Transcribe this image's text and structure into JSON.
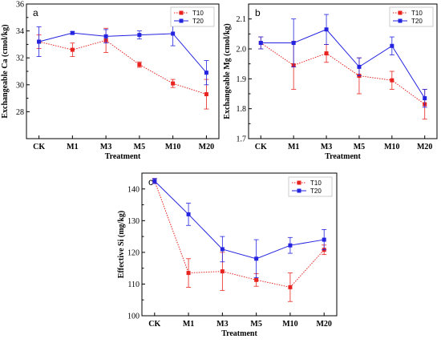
{
  "colors": {
    "T10": "#e8231f",
    "T20": "#2323e0",
    "axis": "#000000"
  },
  "chart_data": [
    {
      "type": "line",
      "panel_label": "a",
      "categories": [
        "CK",
        "M1",
        "M3",
        "M5",
        "M10",
        "M20"
      ],
      "series": [
        {
          "name": "T10",
          "values": [
            33.2,
            32.6,
            33.3,
            31.5,
            30.1,
            29.3
          ],
          "errors": [
            0.5,
            0.5,
            0.9,
            0.2,
            0.3,
            1.1
          ]
        },
        {
          "name": "T20",
          "values": [
            33.2,
            33.85,
            33.6,
            33.7,
            33.8,
            30.9
          ],
          "errors": [
            1.1,
            0.1,
            0.5,
            0.3,
            0.9,
            0.9
          ]
        }
      ],
      "xlabel": "Treatment",
      "ylabel": "Exchangeable Ca (cmol/kg)",
      "ylim": [
        26,
        36
      ],
      "yticks": [
        28,
        30,
        32,
        34,
        36
      ],
      "legend": "top-right"
    },
    {
      "type": "line",
      "panel_label": "b",
      "categories": [
        "CK",
        "M1",
        "M3",
        "M5",
        "M10",
        "M20"
      ],
      "series": [
        {
          "name": "T10",
          "values": [
            2.02,
            1.945,
            1.985,
            1.91,
            1.895,
            1.815
          ],
          "errors": [
            0.02,
            0.08,
            0.03,
            0.06,
            0.03,
            0.05
          ]
        },
        {
          "name": "T20",
          "values": [
            2.02,
            2.02,
            2.065,
            1.94,
            2.01,
            1.835
          ],
          "errors": [
            0.02,
            0.08,
            0.05,
            0.03,
            0.03,
            0.03
          ]
        }
      ],
      "xlabel": "Treatment",
      "ylabel": "Exchangeable Mg (cmol/kg)",
      "ylim": [
        1.7,
        2.15
      ],
      "yticks": [
        1.7,
        1.8,
        1.9,
        2.0,
        2.1
      ],
      "legend": "top-right"
    },
    {
      "type": "line",
      "panel_label": "c",
      "categories": [
        "CK",
        "M1",
        "M3",
        "M5",
        "M10",
        "M20"
      ],
      "series": [
        {
          "name": "T10",
          "values": [
            142.5,
            113.5,
            114,
            111.3,
            109,
            120.8
          ],
          "errors": [
            0.8,
            4.5,
            6,
            2,
            4.5,
            1.5
          ]
        },
        {
          "name": "T20",
          "values": [
            142.5,
            132,
            121,
            118,
            122.2,
            124
          ],
          "errors": [
            0.8,
            3.5,
            4,
            6,
            2.5,
            3.2
          ]
        }
      ],
      "xlabel": "Treatment",
      "ylabel": "Effective Si (mg/kg)",
      "ylim": [
        100,
        145
      ],
      "yticks": [
        100,
        110,
        120,
        130,
        140
      ],
      "legend": "top-right"
    }
  ]
}
